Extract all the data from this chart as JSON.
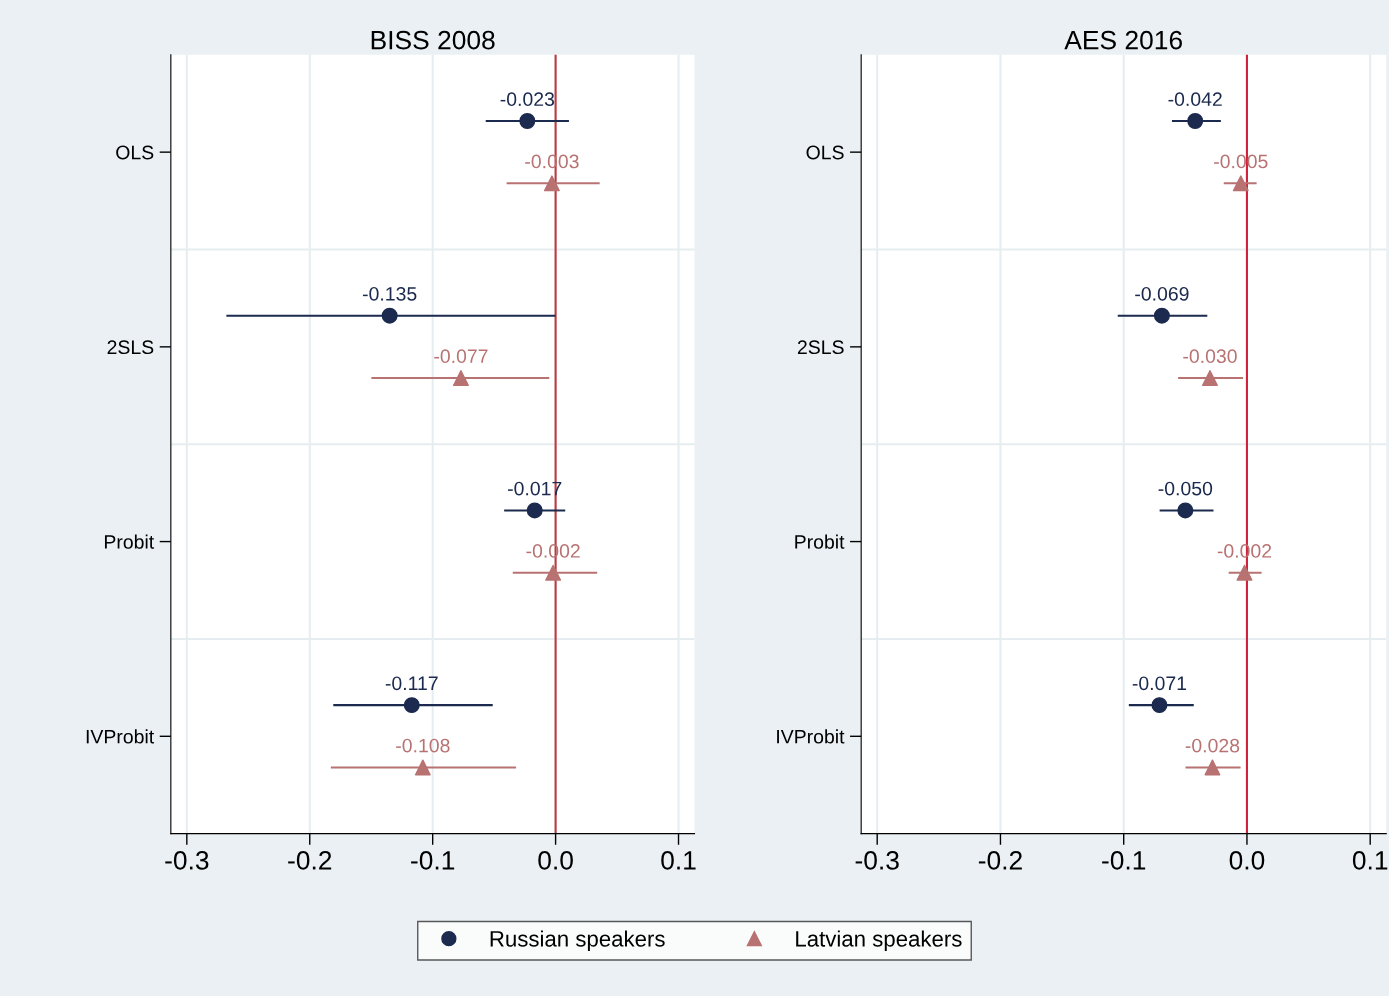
{
  "chart_data": [
    {
      "type": "scatter",
      "title": "BISS 2008",
      "orientation": "horizontal",
      "categories": [
        "OLS",
        "2SLS",
        "Probit",
        "IVProbit"
      ],
      "xlim": [
        -0.313,
        0.113
      ],
      "xticks": [
        {
          "value": -0.3,
          "label": "-0.3"
        },
        {
          "value": -0.2,
          "label": "-0.2"
        },
        {
          "value": -0.1,
          "label": "-0.1"
        },
        {
          "value": 0,
          "label": "0.0"
        },
        {
          "value": 0.1,
          "label": "0.1"
        }
      ],
      "grid": true,
      "legend": "bottom",
      "ref_lines": [
        {
          "axis": "x",
          "value": 0,
          "color": "#c0393f"
        }
      ],
      "series": [
        {
          "name": "Russian speakers",
          "color": "#1b2a4e",
          "marker": "circle",
          "values": [
            -0.023,
            -0.135,
            -0.017,
            -0.117
          ],
          "value_labels": [
            "-0.023",
            "-0.135",
            "-0.017",
            "-0.117"
          ],
          "errors": [
            [
              -0.056,
              0.01
            ],
            [
              -0.267,
              -0.001
            ],
            [
              -0.041,
              0.007
            ],
            [
              -0.18,
              -0.052
            ]
          ]
        },
        {
          "name": "Latvian speakers",
          "color": "#b87272",
          "marker": "triangle",
          "values": [
            -0.003,
            -0.077,
            -0.002,
            -0.108
          ],
          "value_labels": [
            "-0.003",
            "-0.077",
            "-0.002",
            "-0.108"
          ],
          "errors": [
            [
              -0.039,
              0.035
            ],
            [
              -0.149,
              -0.006
            ],
            [
              -0.034,
              0.033
            ],
            [
              -0.182,
              -0.033
            ]
          ]
        }
      ]
    },
    {
      "type": "scatter",
      "title": "AES 2016",
      "orientation": "horizontal",
      "categories": [
        "OLS",
        "2SLS",
        "Probit",
        "IVProbit"
      ],
      "xlim": [
        -0.313,
        0.113
      ],
      "xticks": [
        {
          "value": -0.3,
          "label": "-0.3"
        },
        {
          "value": -0.2,
          "label": "-0.2"
        },
        {
          "value": -0.1,
          "label": "-0.1"
        },
        {
          "value": 0,
          "label": "0.0"
        },
        {
          "value": 0.1,
          "label": "0.1"
        }
      ],
      "grid": true,
      "ref_lines": [
        {
          "axis": "x",
          "value": 0,
          "color": "#d0223a"
        }
      ],
      "series": [
        {
          "name": "Russian speakers",
          "color": "#1b2a4e",
          "marker": "circle",
          "values": [
            -0.042,
            -0.069,
            -0.05,
            -0.071
          ],
          "value_labels": [
            "-0.042",
            "-0.069",
            "-0.050",
            "-0.071"
          ],
          "errors": [
            [
              -0.06,
              -0.022
            ],
            [
              -0.104,
              -0.033
            ],
            [
              -0.07,
              -0.028
            ],
            [
              -0.095,
              -0.044
            ]
          ]
        },
        {
          "name": "Latvian speakers",
          "color": "#b87272",
          "marker": "triangle",
          "values": [
            -0.005,
            -0.03,
            -0.002,
            -0.028
          ],
          "value_labels": [
            "-0.005",
            "-0.030",
            "-0.002",
            "-0.028"
          ],
          "errors": [
            [
              -0.018,
              0.007
            ],
            [
              -0.055,
              -0.004
            ],
            [
              -0.014,
              0.011
            ],
            [
              -0.049,
              -0.006
            ]
          ]
        }
      ]
    }
  ]
}
